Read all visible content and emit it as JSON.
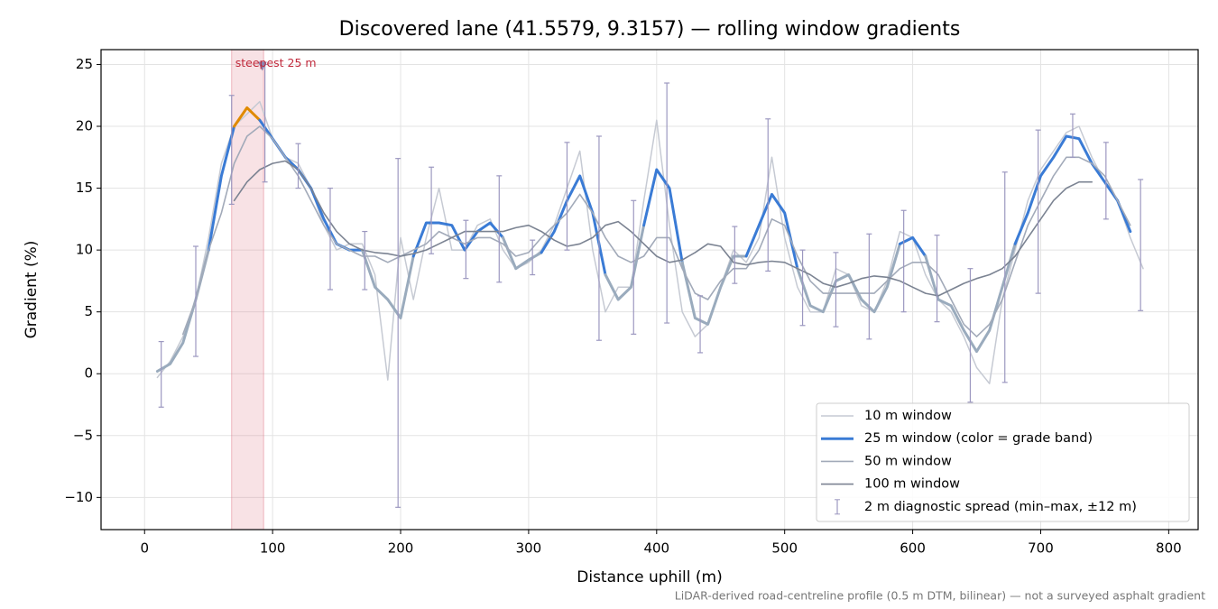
{
  "chart_data": {
    "type": "line",
    "title": "Discovered lane (41.5579, 9.3157) — rolling window gradients",
    "xlabel": "Distance uphill (m)",
    "ylabel": "Gradient (%)",
    "footnote": "LiDAR-derived road-centreline profile (0.5 m DTM, bilinear) — not a surveyed asphalt gradient",
    "xlim": [
      -34,
      823
    ],
    "ylim": [
      -12.6,
      26.2
    ],
    "xticks": [
      0,
      100,
      200,
      300,
      400,
      500,
      600,
      700,
      800
    ],
    "yticks": [
      {
        "value": -10,
        "label": "−10"
      },
      {
        "value": -5,
        "label": "−5"
      },
      0,
      5,
      10,
      15,
      20,
      25
    ],
    "grid": true,
    "legend": "lower right",
    "x": [
      0,
      10,
      20,
      30,
      40,
      50,
      60,
      70,
      80,
      90,
      100,
      110,
      120,
      130,
      140,
      150,
      160,
      170,
      180,
      190,
      200,
      210,
      220,
      230,
      240,
      250,
      260,
      270,
      280,
      290,
      300,
      310,
      320,
      330,
      340,
      350,
      360,
      370,
      380,
      390,
      400,
      410,
      420,
      430,
      440,
      450,
      460,
      470,
      480,
      490,
      500,
      510,
      520,
      530,
      540,
      550,
      560,
      570,
      580,
      590,
      600,
      610,
      620,
      630,
      640,
      650,
      660,
      670,
      680,
      690,
      700,
      710,
      720,
      730,
      740,
      750,
      760,
      770,
      780,
      790
    ],
    "series": [
      {
        "name": "10 m window",
        "color": "#c6cad3",
        "values": [
          null,
          -0.3,
          1,
          3,
          6,
          11,
          17,
          20,
          21,
          22,
          19,
          17.5,
          17,
          15,
          12,
          10,
          10.5,
          10.5,
          8,
          -0.5,
          11,
          6,
          11,
          15,
          10,
          10,
          12,
          12.5,
          10,
          8.5,
          9,
          10,
          12,
          15,
          18,
          10,
          5,
          7,
          7,
          14,
          20.5,
          12,
          5,
          3,
          4,
          7,
          10,
          9,
          11,
          17.5,
          11,
          7,
          5,
          5,
          8.5,
          8,
          5.5,
          5,
          7.5,
          11.5,
          11,
          8,
          6,
          5,
          3,
          0.5,
          -0.8,
          6,
          10,
          14,
          16.5,
          18,
          19.5,
          20,
          17.5,
          15.5,
          14,
          11,
          8.5,
          null
        ]
      },
      {
        "name": "25 m window (color = grade band)",
        "color": "#3a7bd5",
        "band_colors": [
          {
            "above": 20,
            "color": "#e08a00"
          },
          {
            "below": 10,
            "color": "#9aabbd"
          }
        ],
        "values": [
          null,
          0.2,
          0.8,
          2.5,
          6,
          10,
          16,
          20,
          21.5,
          20.5,
          19,
          17.5,
          16.5,
          15,
          12.5,
          10.5,
          10,
          10,
          7,
          6,
          4.5,
          9.5,
          12.2,
          12.2,
          12,
          10,
          11.5,
          12.2,
          11,
          8.5,
          9.2,
          9.8,
          11.5,
          14,
          16,
          13,
          8,
          6,
          7,
          12,
          16.5,
          15,
          9,
          4.5,
          4,
          7,
          9.5,
          9.5,
          12,
          14.5,
          13,
          8.5,
          5.5,
          5,
          7.5,
          8,
          6,
          5,
          7,
          10.5,
          11,
          9.5,
          6,
          5.5,
          3.5,
          1.8,
          3.5,
          7,
          10.5,
          13,
          16,
          17.5,
          19.2,
          19,
          17,
          15.5,
          14,
          11.5,
          null,
          null
        ]
      },
      {
        "name": "50 m window",
        "color": "#a2aab9",
        "values": [
          null,
          null,
          null,
          3.2,
          6,
          10,
          13,
          17,
          19.2,
          20,
          19,
          17.5,
          16,
          14,
          12,
          10.5,
          10,
          9.5,
          9.5,
          9,
          9.5,
          10,
          10.5,
          11.5,
          11,
          10.5,
          11,
          11,
          10.5,
          9.5,
          9.8,
          11,
          12,
          13,
          14.5,
          13,
          11,
          9.5,
          9,
          9.5,
          11,
          11,
          8.5,
          6.5,
          6,
          7.5,
          8.5,
          8.5,
          10,
          12.5,
          12,
          9.5,
          7.5,
          6.5,
          6.5,
          6.5,
          6.5,
          6.5,
          7.5,
          8.5,
          9,
          9,
          8,
          6,
          4,
          3,
          4,
          6,
          9,
          12,
          14,
          16,
          17.5,
          17.5,
          17,
          16,
          14,
          12,
          null,
          null
        ]
      },
      {
        "name": "100 m window",
        "color": "#7b8392",
        "values": [
          null,
          null,
          null,
          null,
          null,
          null,
          null,
          14,
          15.5,
          16.5,
          17,
          17.2,
          16.5,
          15,
          13,
          11.5,
          10.5,
          10,
          9.8,
          9.7,
          9.5,
          9.7,
          10,
          10.5,
          11,
          11.5,
          11.5,
          11.5,
          11.5,
          11.8,
          12,
          11.5,
          10.8,
          10.3,
          10.5,
          11,
          12,
          12.3,
          11.5,
          10.5,
          9.5,
          9,
          9.2,
          9.8,
          10.5,
          10.3,
          9,
          8.8,
          9,
          9.1,
          9,
          8.5,
          8,
          7.3,
          7,
          7.3,
          7.7,
          7.9,
          7.8,
          7.5,
          7,
          6.5,
          6.3,
          6.8,
          7.3,
          7.7,
          8,
          8.5,
          9.5,
          11,
          12.5,
          14,
          15,
          15.5,
          15.5,
          null,
          null,
          null,
          null,
          null
        ]
      }
    ],
    "errorbars": {
      "name": "2 m diagnostic spread (min–max, ±12 m)",
      "color": "#9c98c0",
      "x": [
        13,
        40,
        68,
        94,
        120,
        145,
        172,
        198,
        224,
        251,
        277,
        303,
        330,
        355,
        382,
        408,
        434,
        461,
        487,
        514,
        540,
        566,
        593,
        619,
        645,
        672,
        698,
        725,
        751,
        778
      ],
      "low": [
        -2.7,
        1.4,
        13.7,
        15.5,
        15,
        6.8,
        6.8,
        -10.8,
        9.7,
        7.7,
        7.4,
        8,
        10,
        2.7,
        3.2,
        4.1,
        1.7,
        7.3,
        8.3,
        3.9,
        3.8,
        2.8,
        5,
        4.2,
        -2.3,
        -0.7,
        6.5,
        17.5,
        12.5,
        5.1
      ],
      "high": [
        2.6,
        10.3,
        22.5,
        25,
        18.6,
        15,
        11.5,
        17.4,
        16.7,
        12.4,
        16,
        10.8,
        18.7,
        19.2,
        14,
        23.5,
        6.3,
        11.9,
        20.6,
        10,
        9.8,
        11.3,
        13.2,
        11.2,
        8.5,
        16.3,
        19.7,
        21,
        18.7,
        15.7
      ]
    },
    "highlight": {
      "label": "steepest 25 m",
      "span": [
        68,
        93
      ],
      "color": "#e07a8a",
      "label_color": "#c0283a",
      "marker_x": 92,
      "marker_y": 24.85
    }
  }
}
